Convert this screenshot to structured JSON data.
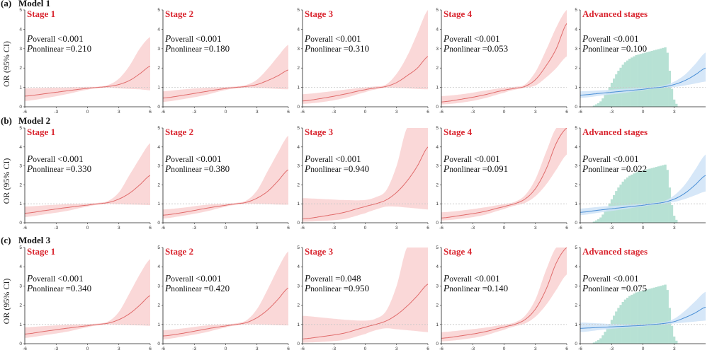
{
  "figure": {
    "ylabel": "OR (95% CI)",
    "models": [
      {
        "tag": "(a)",
        "name": "Model 1"
      },
      {
        "tag": "(b)",
        "name": "Model 2"
      },
      {
        "tag": "(c)",
        "name": "Model 3"
      }
    ]
  },
  "colors": {
    "stage_line": "#e06b6b",
    "stage_band": "#f9d4d4",
    "adv_line": "#4a8fd6",
    "adv_band": "#cfe3f7",
    "histogram": "#b7e1d4",
    "reference": "#c8c8c8",
    "title": "#d9252f"
  },
  "chart_data": [
    {
      "type": "line",
      "model": "Model 1",
      "title": "Stage 1",
      "p_overall": "<0.001",
      "p_nonlinear": "=0.210",
      "ylim": [
        0,
        5
      ],
      "xlim": [
        -6,
        6
      ],
      "x_ticks": [
        -6,
        -3,
        0,
        3,
        6
      ],
      "y_ticks": [
        0,
        1,
        2,
        3,
        4,
        5
      ],
      "reference_y": 1,
      "x": [
        -6,
        -4,
        -2,
        0,
        1,
        2,
        3,
        4,
        5,
        6
      ],
      "or": [
        0.55,
        0.68,
        0.82,
        0.95,
        1.0,
        1.05,
        1.15,
        1.35,
        1.7,
        2.1
      ],
      "lower": [
        0.3,
        0.45,
        0.65,
        0.88,
        0.96,
        0.98,
        0.95,
        0.92,
        0.9,
        0.85
      ],
      "upper": [
        0.95,
        0.98,
        1.0,
        1.03,
        1.04,
        1.13,
        1.45,
        2.1,
        3.0,
        3.6
      ]
    },
    {
      "type": "line",
      "model": "Model 1",
      "title": "Stage 2",
      "p_overall": "<0.001",
      "p_nonlinear": "=0.180",
      "ylim": [
        0,
        5
      ],
      "xlim": [
        -6,
        6
      ],
      "x_ticks": [
        -6,
        -3,
        0,
        3,
        6
      ],
      "y_ticks": [
        0,
        1,
        2,
        3,
        4,
        5
      ],
      "reference_y": 1,
      "x": [
        -6,
        -4,
        -2,
        0,
        1,
        2,
        3,
        4,
        5,
        6
      ],
      "or": [
        0.45,
        0.6,
        0.78,
        0.94,
        1.0,
        1.05,
        1.15,
        1.35,
        1.6,
        1.9
      ],
      "lower": [
        0.25,
        0.4,
        0.6,
        0.86,
        0.95,
        0.98,
        0.97,
        0.95,
        0.92,
        0.9
      ],
      "upper": [
        0.8,
        0.9,
        0.98,
        1.02,
        1.05,
        1.13,
        1.4,
        1.95,
        2.6,
        3.2
      ]
    },
    {
      "type": "line",
      "model": "Model 1",
      "title": "Stage 3",
      "p_overall": "<0.001",
      "p_nonlinear": "=0.310",
      "ylim": [
        0,
        5
      ],
      "xlim": [
        -6,
        6
      ],
      "x_ticks": [
        -6,
        -3,
        0,
        3,
        6
      ],
      "y_ticks": [
        0,
        1,
        2,
        3,
        4,
        5
      ],
      "reference_y": 1,
      "x": [
        -6,
        -4,
        -2,
        0,
        1,
        2,
        3,
        4,
        5,
        6
      ],
      "or": [
        0.3,
        0.45,
        0.65,
        0.88,
        0.97,
        1.05,
        1.25,
        1.6,
        2.0,
        2.6
      ],
      "lower": [
        0.15,
        0.25,
        0.45,
        0.75,
        0.9,
        0.98,
        0.97,
        0.95,
        0.92,
        0.9
      ],
      "upper": [
        0.65,
        0.75,
        0.88,
        1.0,
        1.05,
        1.15,
        1.7,
        2.6,
        3.8,
        5.0
      ]
    },
    {
      "type": "line",
      "model": "Model 1",
      "title": "Stage 4",
      "p_overall": "<0.001",
      "p_nonlinear": "=0.053",
      "ylim": [
        0,
        5
      ],
      "xlim": [
        -6,
        6
      ],
      "x_ticks": [
        -6,
        -3,
        0,
        3,
        6
      ],
      "y_ticks": [
        0,
        1,
        2,
        3,
        4,
        5
      ],
      "reference_y": 1,
      "x": [
        -6,
        -4,
        -2,
        0,
        1,
        2,
        3,
        4,
        5,
        6
      ],
      "or": [
        0.25,
        0.4,
        0.6,
        0.85,
        0.95,
        1.05,
        1.4,
        2.1,
        3.0,
        4.3
      ],
      "lower": [
        0.12,
        0.22,
        0.42,
        0.72,
        0.88,
        0.98,
        1.1,
        1.5,
        2.0,
        2.6
      ],
      "upper": [
        0.55,
        0.65,
        0.82,
        0.98,
        1.03,
        1.15,
        1.8,
        2.9,
        4.1,
        5.0
      ]
    },
    {
      "type": "line",
      "model": "Model 1",
      "title": "Advanced stages",
      "p_overall": "<0.001",
      "p_nonlinear": "=0.100",
      "ylim": [
        0,
        5
      ],
      "xlim": [
        -6,
        6
      ],
      "x_ticks": [
        -6,
        -3,
        0,
        3
      ],
      "y_ticks": [
        0,
        1,
        2,
        3,
        4,
        5
      ],
      "reference_y": 1,
      "x": [
        -6,
        -4,
        -2,
        0,
        1,
        2,
        3,
        4,
        5,
        6
      ],
      "or": [
        0.6,
        0.7,
        0.8,
        0.9,
        0.97,
        1.03,
        1.15,
        1.35,
        1.65,
        2.0
      ],
      "lower": [
        0.45,
        0.58,
        0.7,
        0.85,
        0.93,
        0.98,
        1.02,
        1.1,
        1.2,
        1.3
      ],
      "upper": [
        0.8,
        0.85,
        0.92,
        0.97,
        1.02,
        1.1,
        1.3,
        1.65,
        2.2,
        2.8
      ],
      "histogram": [
        0.02,
        0.04,
        0.06,
        0.09,
        0.14,
        0.2,
        0.26,
        0.33,
        0.4,
        0.47,
        0.54,
        0.6,
        0.65,
        0.7,
        0.74,
        0.77,
        0.8,
        0.82,
        0.84,
        0.86,
        0.87,
        0.88,
        0.89,
        0.9,
        0.91,
        0.92,
        0.93,
        0.94,
        0.95,
        0.96,
        0.97,
        0.98,
        0.99,
        0.9,
        0.6,
        0.3,
        0.12,
        0.05
      ]
    },
    {
      "type": "line",
      "model": "Model 2",
      "title": "Stage 1",
      "p_overall": "<0.001",
      "p_nonlinear": "=0.330",
      "ylim": [
        0,
        5
      ],
      "xlim": [
        -6,
        6
      ],
      "x_ticks": [
        -6,
        -3,
        0,
        3,
        6
      ],
      "y_ticks": [
        0,
        1,
        2,
        3,
        4,
        5
      ],
      "reference_y": 1,
      "x": [
        -6,
        -4,
        -2,
        0,
        1,
        2,
        3,
        4,
        5,
        6
      ],
      "or": [
        0.5,
        0.65,
        0.8,
        0.93,
        1.0,
        1.07,
        1.25,
        1.55,
        2.0,
        2.5
      ],
      "lower": [
        0.3,
        0.45,
        0.62,
        0.85,
        0.95,
        0.99,
        0.98,
        0.96,
        0.95,
        0.93
      ],
      "upper": [
        0.85,
        0.92,
        0.98,
        1.02,
        1.05,
        1.16,
        1.6,
        2.5,
        3.4,
        4.2
      ]
    },
    {
      "type": "line",
      "model": "Model 2",
      "title": "Stage 2",
      "p_overall": "<0.001",
      "p_nonlinear": "=0.380",
      "ylim": [
        0,
        5
      ],
      "xlim": [
        -6,
        6
      ],
      "x_ticks": [
        -6,
        -3,
        0,
        3,
        6
      ],
      "y_ticks": [
        0,
        1,
        2,
        3,
        4,
        5
      ],
      "reference_y": 1,
      "x": [
        -6,
        -4,
        -2,
        0,
        1,
        2,
        3,
        4,
        5,
        6
      ],
      "or": [
        0.4,
        0.55,
        0.75,
        0.92,
        1.0,
        1.08,
        1.3,
        1.65,
        2.2,
        2.8
      ],
      "lower": [
        0.22,
        0.38,
        0.58,
        0.84,
        0.95,
        1.0,
        1.0,
        0.98,
        0.96,
        0.95
      ],
      "upper": [
        0.7,
        0.8,
        0.94,
        1.01,
        1.05,
        1.18,
        1.7,
        2.7,
        3.7,
        4.6
      ]
    },
    {
      "type": "line",
      "model": "Model 2",
      "title": "Stage 3",
      "p_overall": "<0.001",
      "p_nonlinear": "=0.940",
      "ylim": [
        0,
        5
      ],
      "xlim": [
        -6,
        6
      ],
      "x_ticks": [
        -6,
        -3,
        0,
        3,
        6
      ],
      "y_ticks": [
        0,
        1,
        2,
        3,
        4,
        5
      ],
      "reference_y": 1,
      "x": [
        -6,
        -4,
        -2,
        0,
        1,
        2,
        3,
        4,
        5,
        6
      ],
      "or": [
        0.2,
        0.35,
        0.55,
        0.85,
        1.0,
        1.2,
        1.6,
        2.2,
        3.0,
        4.0
      ],
      "lower": [
        0.05,
        0.1,
        0.2,
        0.5,
        0.7,
        0.85,
        0.85,
        0.8,
        0.75,
        0.7
      ],
      "upper": [
        1.3,
        1.25,
        1.2,
        1.2,
        1.35,
        1.7,
        3.0,
        5.0,
        5.0,
        5.0
      ]
    },
    {
      "type": "line",
      "model": "Model 2",
      "title": "Stage 4",
      "p_overall": "<0.001",
      "p_nonlinear": "=0.091",
      "ylim": [
        0,
        5
      ],
      "xlim": [
        -6,
        6
      ],
      "x_ticks": [
        -6,
        -3,
        0,
        3,
        6
      ],
      "y_ticks": [
        0,
        1,
        2,
        3,
        4,
        5
      ],
      "reference_y": 1,
      "x": [
        -6,
        -4,
        -2,
        0,
        1,
        2,
        3,
        4,
        5,
        6
      ],
      "or": [
        0.25,
        0.4,
        0.58,
        0.85,
        1.0,
        1.25,
        1.8,
        2.8,
        4.2,
        5.0
      ],
      "lower": [
        0.12,
        0.22,
        0.4,
        0.72,
        0.9,
        1.05,
        1.4,
        2.0,
        2.8,
        3.6
      ],
      "upper": [
        0.55,
        0.65,
        0.8,
        0.98,
        1.1,
        1.45,
        2.3,
        3.7,
        5.0,
        5.0
      ]
    },
    {
      "type": "line",
      "model": "Model 2",
      "title": "Advanced stages",
      "p_overall": "<0.001",
      "p_nonlinear": "=0.022",
      "ylim": [
        0,
        5
      ],
      "xlim": [
        -6,
        6
      ],
      "x_ticks": [
        -6,
        -3,
        0,
        3
      ],
      "y_ticks": [
        0,
        1,
        2,
        3,
        4,
        5
      ],
      "reference_y": 1,
      "x": [
        -6,
        -4,
        -2,
        0,
        1,
        2,
        3,
        4,
        5,
        6
      ],
      "or": [
        0.55,
        0.68,
        0.8,
        0.92,
        1.0,
        1.08,
        1.25,
        1.55,
        2.0,
        2.5
      ],
      "lower": [
        0.4,
        0.55,
        0.7,
        0.86,
        0.95,
        1.02,
        1.1,
        1.25,
        1.45,
        1.65
      ],
      "upper": [
        0.75,
        0.85,
        0.92,
        0.99,
        1.05,
        1.15,
        1.45,
        2.0,
        2.8,
        3.6
      ],
      "histogram": [
        0.02,
        0.04,
        0.06,
        0.09,
        0.14,
        0.2,
        0.26,
        0.33,
        0.4,
        0.47,
        0.54,
        0.6,
        0.65,
        0.7,
        0.74,
        0.77,
        0.8,
        0.82,
        0.84,
        0.86,
        0.87,
        0.88,
        0.89,
        0.9,
        0.91,
        0.92,
        0.93,
        0.94,
        0.95,
        0.96,
        0.97,
        0.98,
        0.99,
        0.9,
        0.6,
        0.3,
        0.12,
        0.05
      ]
    },
    {
      "type": "line",
      "model": "Model 3",
      "title": "Stage 1",
      "p_overall": "<0.001",
      "p_nonlinear": "=0.340",
      "ylim": [
        0,
        5
      ],
      "xlim": [
        -6,
        6
      ],
      "x_ticks": [
        -6,
        -3,
        0,
        3,
        6
      ],
      "y_ticks": [
        0,
        1,
        2,
        3,
        4,
        5
      ],
      "reference_y": 1,
      "x": [
        -6,
        -4,
        -2,
        0,
        1,
        2,
        3,
        4,
        5,
        6
      ],
      "or": [
        0.5,
        0.65,
        0.8,
        0.93,
        1.0,
        1.07,
        1.25,
        1.55,
        2.0,
        2.5
      ],
      "lower": [
        0.3,
        0.45,
        0.62,
        0.85,
        0.95,
        0.99,
        0.98,
        0.96,
        0.95,
        0.93
      ],
      "upper": [
        0.85,
        0.92,
        0.98,
        1.02,
        1.05,
        1.16,
        1.65,
        2.6,
        3.6,
        4.4
      ]
    },
    {
      "type": "line",
      "model": "Model 3",
      "title": "Stage 2",
      "p_overall": "<0.001",
      "p_nonlinear": "=0.420",
      "ylim": [
        0,
        5
      ],
      "xlim": [
        -6,
        6
      ],
      "x_ticks": [
        -6,
        -3,
        0,
        3,
        6
      ],
      "y_ticks": [
        0,
        1,
        2,
        3,
        4,
        5
      ],
      "reference_y": 1,
      "x": [
        -6,
        -4,
        -2,
        0,
        1,
        2,
        3,
        4,
        5,
        6
      ],
      "or": [
        0.4,
        0.55,
        0.75,
        0.92,
        1.0,
        1.1,
        1.35,
        1.75,
        2.3,
        2.9
      ],
      "lower": [
        0.22,
        0.38,
        0.58,
        0.84,
        0.95,
        1.0,
        1.0,
        0.98,
        0.96,
        0.95
      ],
      "upper": [
        0.7,
        0.8,
        0.94,
        1.01,
        1.06,
        1.22,
        1.8,
        2.8,
        3.9,
        4.8
      ]
    },
    {
      "type": "line",
      "model": "Model 3",
      "title": "Stage 3",
      "p_overall": "=0.048",
      "p_nonlinear": "=0.950",
      "ylim": [
        0,
        5
      ],
      "xlim": [
        -6,
        6
      ],
      "x_ticks": [
        -6,
        -3,
        0,
        3,
        6
      ],
      "y_ticks": [
        0,
        1,
        2,
        3,
        4,
        5
      ],
      "reference_y": 1,
      "x": [
        -6,
        -4,
        -2,
        0,
        1,
        2,
        3,
        4,
        5,
        6
      ],
      "or": [
        0.25,
        0.38,
        0.55,
        0.85,
        1.0,
        1.18,
        1.5,
        1.95,
        2.5,
        3.1
      ],
      "lower": [
        0.05,
        0.1,
        0.2,
        0.5,
        0.7,
        0.8,
        0.75,
        0.7,
        0.65,
        0.6
      ],
      "upper": [
        1.45,
        1.35,
        1.25,
        1.2,
        1.3,
        1.7,
        3.0,
        5.0,
        5.0,
        5.0
      ]
    },
    {
      "type": "line",
      "model": "Model 3",
      "title": "Stage 4",
      "p_overall": "<0.001",
      "p_nonlinear": "=0.140",
      "ylim": [
        0,
        5
      ],
      "xlim": [
        -6,
        6
      ],
      "x_ticks": [
        -6,
        -3,
        0,
        3,
        6
      ],
      "y_ticks": [
        0,
        1,
        2,
        3,
        4,
        5
      ],
      "reference_y": 1,
      "x": [
        -6,
        -4,
        -2,
        0,
        1,
        2,
        3,
        4,
        5,
        6
      ],
      "or": [
        0.28,
        0.42,
        0.6,
        0.86,
        1.0,
        1.25,
        1.8,
        2.8,
        4.2,
        5.0
      ],
      "lower": [
        0.12,
        0.22,
        0.4,
        0.72,
        0.9,
        1.05,
        1.4,
        2.0,
        2.8,
        3.6
      ],
      "upper": [
        0.6,
        0.7,
        0.82,
        0.99,
        1.1,
        1.45,
        2.3,
        3.8,
        5.0,
        5.0
      ]
    },
    {
      "type": "line",
      "model": "Model 3",
      "title": "Advanced stages",
      "p_overall": "<0.001",
      "p_nonlinear": "=0.075",
      "ylim": [
        0,
        5
      ],
      "xlim": [
        -6,
        6
      ],
      "x_ticks": [
        -6,
        -3,
        0,
        3
      ],
      "y_ticks": [
        0,
        1,
        2,
        3,
        4,
        5
      ],
      "reference_y": 1,
      "x": [
        -6,
        -4,
        -2,
        0,
        1,
        2,
        3,
        4,
        5,
        6
      ],
      "or": [
        0.8,
        0.85,
        0.9,
        0.95,
        1.0,
        1.05,
        1.15,
        1.35,
        1.6,
        1.9
      ],
      "lower": [
        0.6,
        0.72,
        0.82,
        0.9,
        0.96,
        1.0,
        1.05,
        1.1,
        1.15,
        1.2
      ],
      "upper": [
        1.1,
        1.05,
        1.0,
        1.0,
        1.05,
        1.12,
        1.3,
        1.7,
        2.2,
        2.7
      ],
      "histogram": [
        0.02,
        0.04,
        0.06,
        0.09,
        0.14,
        0.2,
        0.26,
        0.33,
        0.4,
        0.47,
        0.54,
        0.6,
        0.65,
        0.7,
        0.74,
        0.77,
        0.8,
        0.82,
        0.84,
        0.86,
        0.87,
        0.88,
        0.89,
        0.9,
        0.91,
        0.92,
        0.93,
        0.94,
        0.95,
        0.96,
        0.97,
        0.98,
        0.99,
        0.9,
        0.6,
        0.3,
        0.12,
        0.05
      ]
    }
  ]
}
